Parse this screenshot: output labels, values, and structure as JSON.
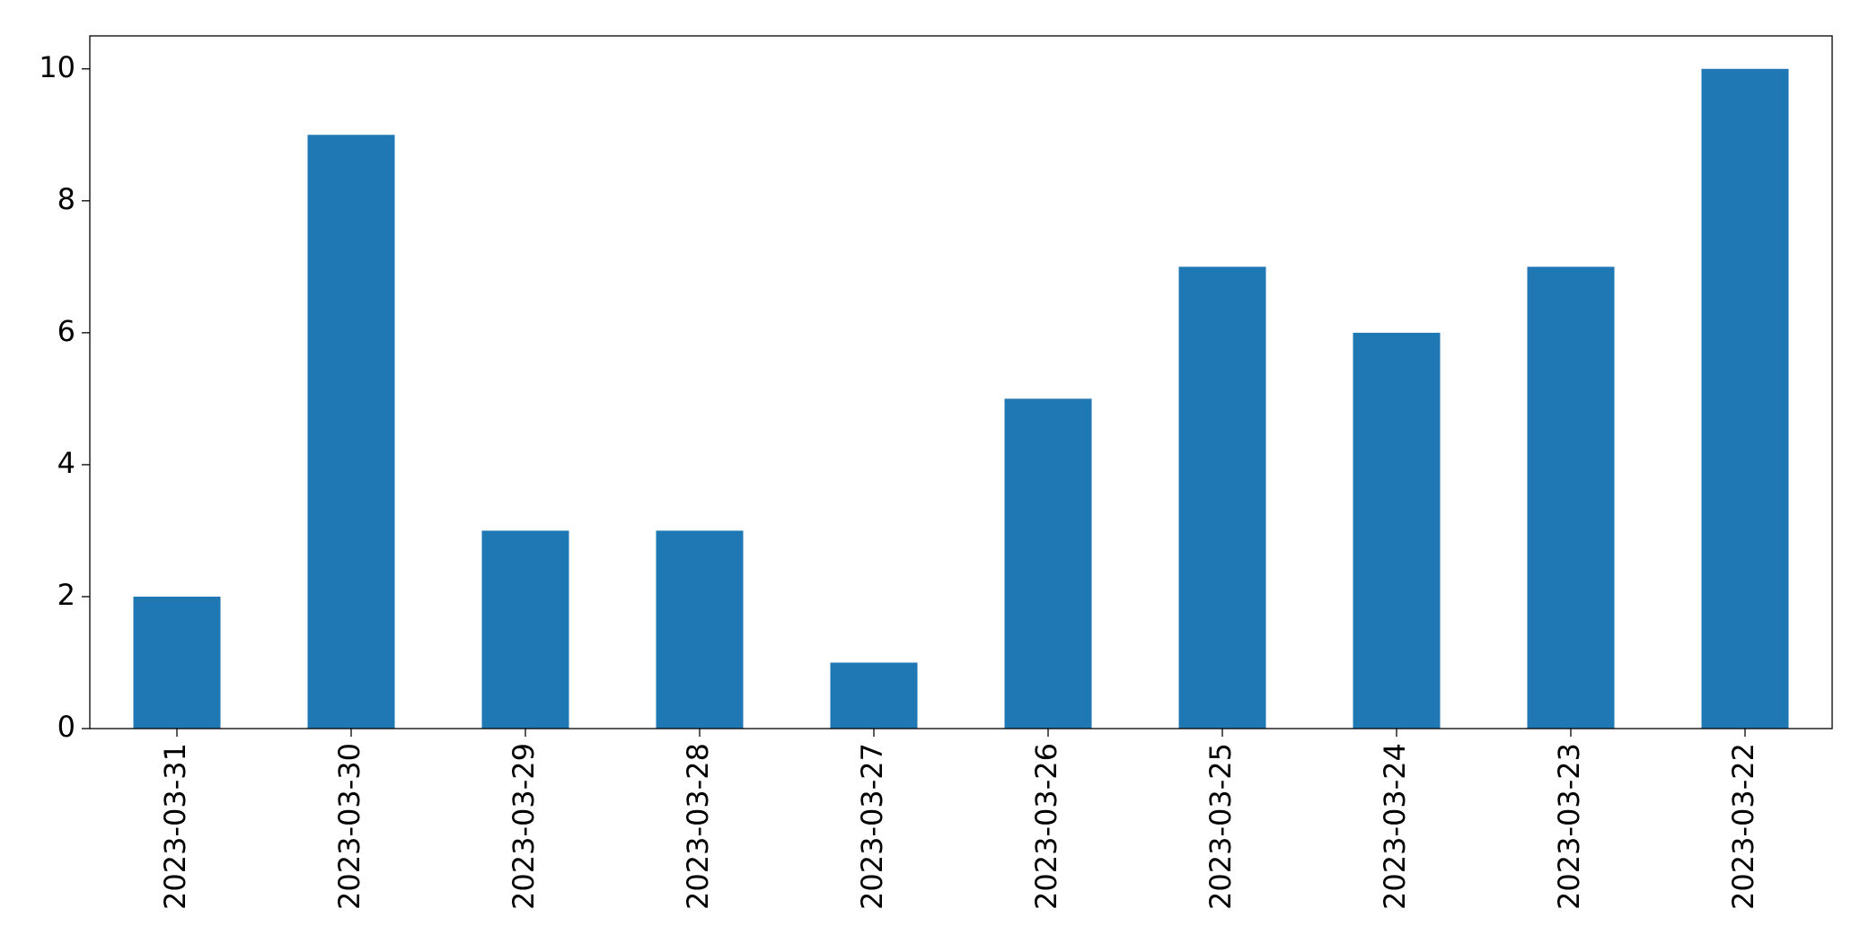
{
  "chart_data": {
    "type": "bar",
    "categories": [
      "2023-03-31",
      "2023-03-30",
      "2023-03-29",
      "2023-03-28",
      "2023-03-27",
      "2023-03-26",
      "2023-03-25",
      "2023-03-24",
      "2023-03-23",
      "2023-03-22"
    ],
    "values": [
      2,
      9,
      3,
      3,
      1,
      5,
      7,
      6,
      7,
      10
    ],
    "color": "#1f77b4",
    "ylim": [
      0,
      10.5
    ],
    "yticks": [
      0,
      2,
      4,
      6,
      8,
      10
    ],
    "grid": false
  }
}
